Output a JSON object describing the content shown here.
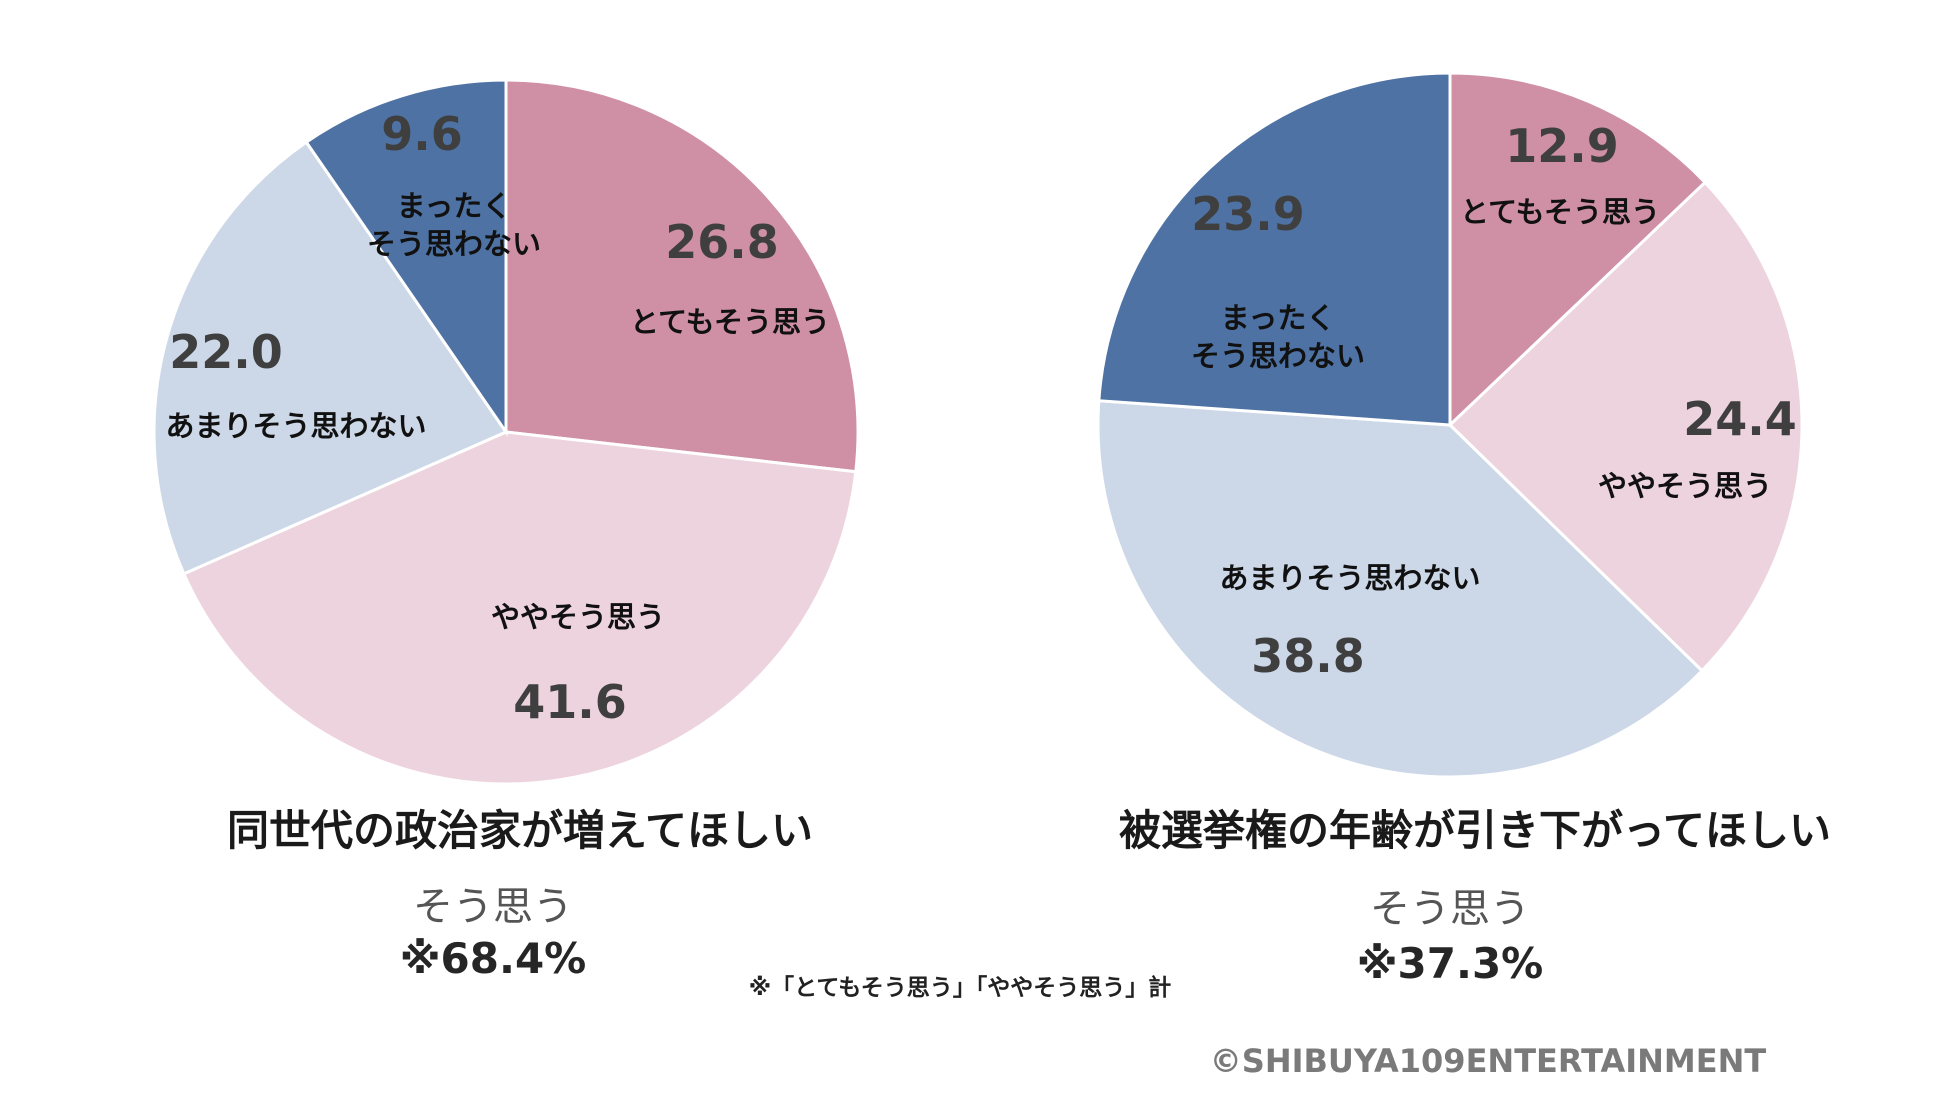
{
  "chart_data": [
    {
      "type": "pie",
      "title": "同世代の政治家が増えてほしい",
      "slices": [
        {
          "label": "とてもそう思う",
          "value": 26.8,
          "value_text": "26.8",
          "color": "#cf90a6"
        },
        {
          "label": "ややそう思う",
          "value": 41.6,
          "value_text": "41.6",
          "color": "#edd3dd"
        },
        {
          "label": "あまりそう思わない",
          "value": 22.0,
          "value_text": "22.0",
          "color": "#ccd8e8"
        },
        {
          "label": "まったく\nそう思わない",
          "value": 9.6,
          "value_text": "9.6",
          "color": "#4e72a3"
        }
      ],
      "summary_label": "そう思う",
      "summary_value": "※68.4%"
    },
    {
      "type": "pie",
      "title": "被選挙権の年齢が引き下がってほしい",
      "slices": [
        {
          "label": "とてもそう思う",
          "value": 12.9,
          "value_text": "12.9",
          "color": "#cf90a6"
        },
        {
          "label": "ややそう思う",
          "value": 24.4,
          "value_text": "24.4",
          "color": "#edd3dd"
        },
        {
          "label": "あまりそう思わない",
          "value": 38.8,
          "value_text": "38.8",
          "color": "#ccd8e8"
        },
        {
          "label": "まったく\nそう思わない",
          "value": 23.9,
          "value_text": "23.9",
          "color": "#4e72a3"
        }
      ],
      "summary_label": "そう思う",
      "summary_value": "※37.3%"
    }
  ],
  "footnote": "※「とてもそう思う」「ややそう思う」計",
  "copyright": "©SHIBUYA109ENTERTAINMENT"
}
